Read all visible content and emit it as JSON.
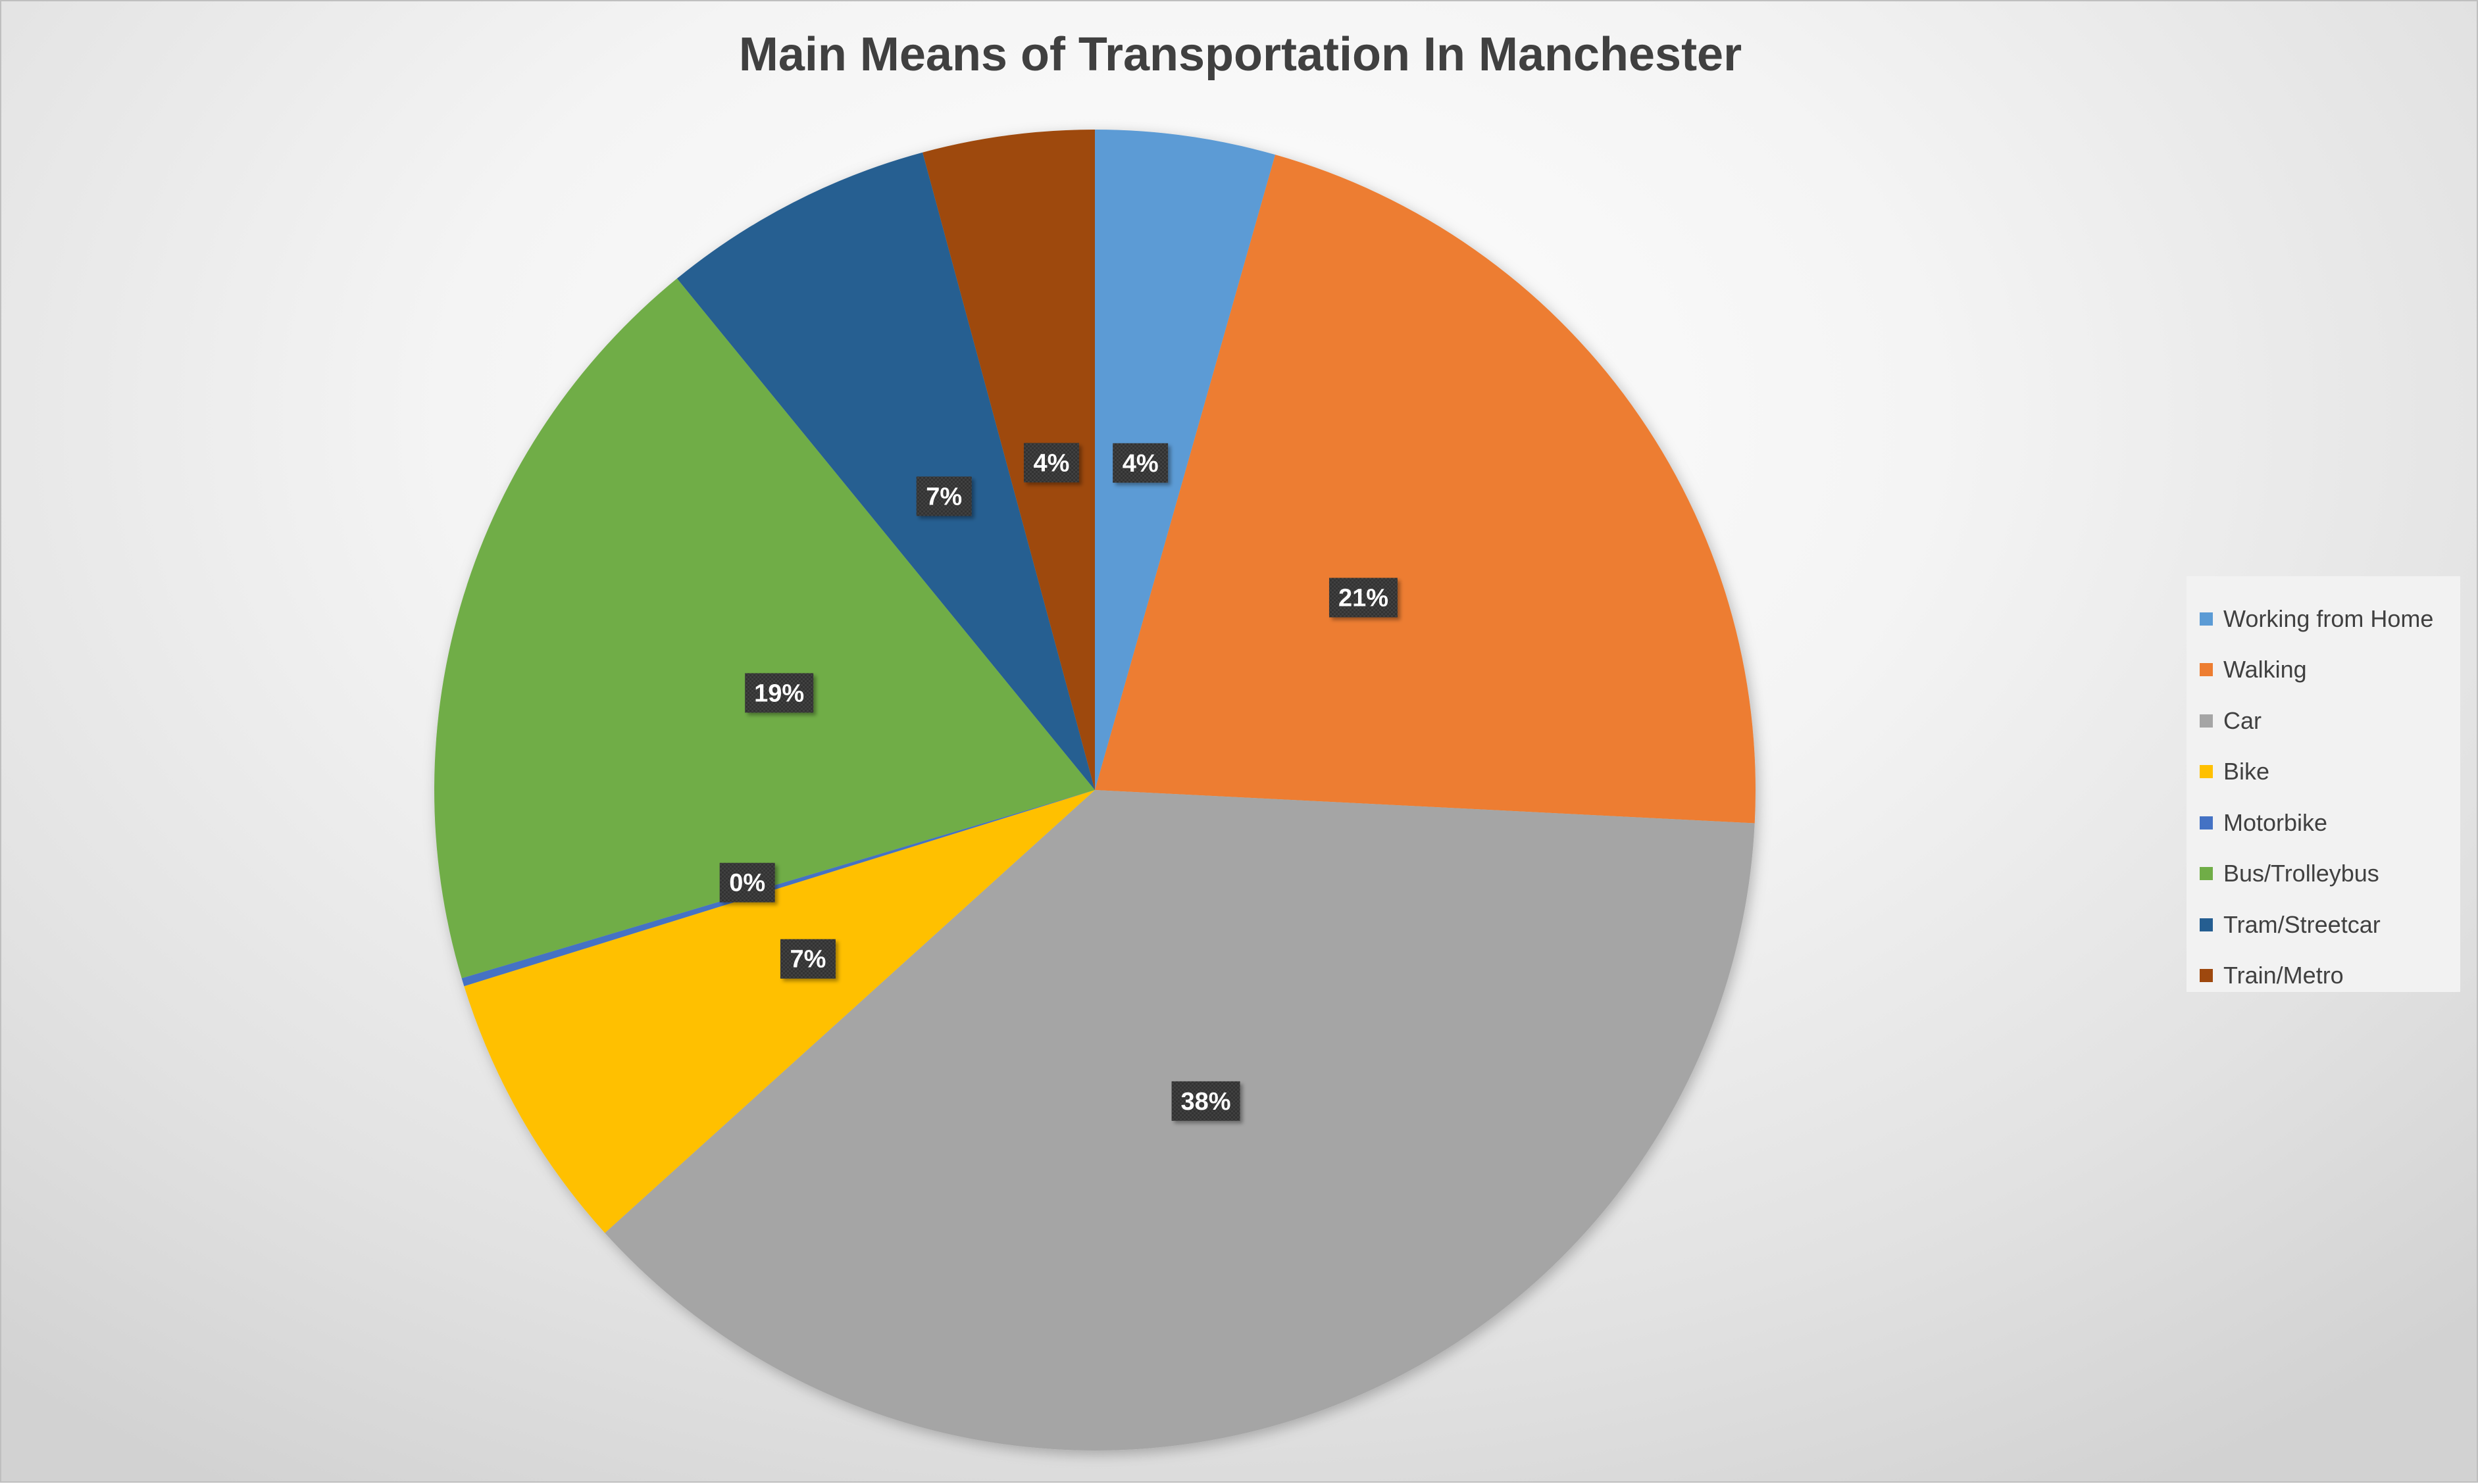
{
  "chart_data": {
    "type": "pie",
    "title": "Main Means of Transportation In Manchester",
    "categories": [
      "Working from Home",
      "Walking",
      "Car",
      "Bike",
      "Motorbike",
      "Bus/Trolleybus",
      "Tram/Streetcar",
      "Train/Metro"
    ],
    "values": [
      4.4,
      21.4,
      37.5,
      6.9,
      0.2,
      18.7,
      6.7,
      4.2
    ],
    "data_labels": [
      "4%",
      "21%",
      "38%",
      "7%",
      "0%",
      "19%",
      "7%",
      "4%"
    ],
    "colors": [
      "#5b9bd5",
      "#ed7d31",
      "#a5a5a5",
      "#ffc000",
      "#4472c4",
      "#70ad47",
      "#255e91",
      "#9e480e"
    ],
    "start_angle": "12 o'clock",
    "direction": "clockwise",
    "legend_position": "right"
  }
}
